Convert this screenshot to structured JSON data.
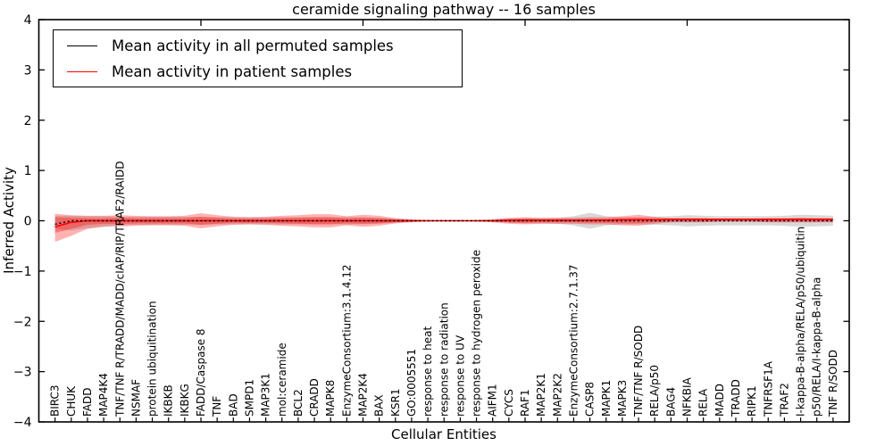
{
  "chart_data": {
    "type": "line",
    "title": "ceramide signaling pathway -- 16 samples",
    "xlabel": "Cellular Entities",
    "ylabel": "Inferred Activity",
    "ylim": [
      -4,
      4
    ],
    "xlim": [
      0,
      50
    ],
    "yticks": [
      4,
      3,
      2,
      1,
      0,
      -1,
      -2,
      -3,
      -4
    ],
    "ytick_labels": [
      "4",
      "3",
      "2",
      "1",
      "0",
      "−1",
      "−2",
      "−3",
      "−4"
    ],
    "top_ticks": [
      10,
      20,
      30,
      40
    ],
    "grid": false,
    "legend_position": "upper left",
    "legend": [
      "Mean activity in all permuted samples",
      "Mean activity in patient samples"
    ],
    "colors": {
      "permuted_line": "#000000",
      "patient_line": "#ff0000",
      "patient_band": "#ff0000",
      "permuted_band": "#999999",
      "frame": "#000000",
      "background": "#ffffff"
    },
    "categories": [
      "BIRC3",
      "CHUK",
      "FADD",
      "MAP4K4",
      "TNF/TNF R/TRADD/MADD/cIAP/RIP/TRAF2/RAIDD",
      "NSMAF",
      "protein ubiquitination",
      "IKBKB",
      "IKBKG",
      "FADD/Caspase 8",
      "TNF",
      "BAD",
      "SMPD1",
      "MAP3K1",
      "mol:ceramide",
      "BCL2",
      "CRADD",
      "MAPK8",
      "EnzymeConsortium:3.1.4.12",
      "MAP2K4",
      "BAX",
      "KSR1",
      "GO:0005551",
      "response to heat",
      "response to radiation",
      "response to UV",
      "response to hydrogen peroxide",
      "AIFM1",
      "CYCS",
      "RAF1",
      "MAP2K1",
      "MAP2K2",
      "EnzymeConsortium:2.7.1.37",
      "CASP8",
      "MAPK1",
      "MAPK3",
      "TNF/TNF R/SODD",
      "RELA/p50",
      "BAG4",
      "NFKBIA",
      "RELA",
      "MADD",
      "TRADD",
      "RIPK1",
      "TNFRSF1A",
      "TRAF2",
      "I-kappa-B-alpha/RELA/p50/ubiquitin",
      "p50/RELA/I-kappa-B-alpha",
      "TNF R/SODD"
    ],
    "series": [
      {
        "name": "Mean activity in all permuted samples",
        "values": [
          -0.07,
          0,
          0,
          0,
          0,
          0,
          0,
          0,
          0,
          0,
          0,
          0,
          0,
          0,
          0,
          0,
          0,
          0,
          0,
          0,
          0,
          0,
          0,
          0,
          0,
          0,
          0,
          0,
          0,
          0,
          0,
          0,
          0,
          0,
          0,
          0,
          0,
          0,
          0,
          0,
          0,
          0,
          0,
          0,
          0,
          0,
          0,
          0,
          0
        ]
      },
      {
        "name": "Mean activity in patient samples",
        "values": [
          -0.12,
          -0.03,
          0,
          0,
          0,
          0,
          0,
          0,
          0,
          0,
          0,
          0,
          0,
          0,
          0,
          0,
          0,
          0,
          0,
          0,
          0,
          0,
          0,
          0,
          0,
          0,
          0,
          0,
          0.01,
          0.01,
          0.01,
          0.01,
          0.01,
          0.01,
          0.01,
          0.02,
          0.02,
          0.02,
          0.03,
          0.03,
          0.03,
          0.03,
          0.03,
          0.03,
          0.03,
          0.03,
          0.03,
          0.03,
          0.03
        ]
      },
      {
        "name": "patient band upper",
        "values": [
          0.14,
          0.11,
          0.1,
          0.1,
          0.11,
          0.1,
          0.09,
          0.09,
          0.1,
          0.15,
          0.11,
          0.08,
          0.07,
          0.08,
          0.1,
          0.11,
          0.13,
          0.13,
          0.09,
          0.12,
          0.1,
          0.05,
          0.03,
          0.01,
          0.01,
          0.01,
          0.01,
          0.03,
          0.06,
          0.07,
          0.06,
          0.06,
          0.06,
          0.07,
          0.07,
          0.09,
          0.12,
          0.08,
          0.05,
          0.05,
          0.05,
          0.04,
          0.04,
          0.04,
          0.05,
          0.05,
          0.06,
          0.05,
          0.05
        ]
      },
      {
        "name": "patient band lower",
        "values": [
          -0.42,
          -0.3,
          -0.16,
          -0.12,
          -0.11,
          -0.1,
          -0.09,
          -0.09,
          -0.1,
          -0.15,
          -0.11,
          -0.08,
          -0.07,
          -0.08,
          -0.1,
          -0.11,
          -0.13,
          -0.13,
          -0.09,
          -0.12,
          -0.1,
          -0.05,
          -0.03,
          -0.01,
          -0.01,
          -0.01,
          -0.01,
          -0.03,
          -0.06,
          -0.07,
          -0.06,
          -0.06,
          -0.06,
          -0.07,
          -0.07,
          -0.09,
          -0.1,
          -0.06,
          -0.03,
          -0.03,
          -0.03,
          -0.02,
          -0.02,
          -0.02,
          -0.03,
          -0.03,
          -0.03,
          -0.03,
          -0.03
        ]
      },
      {
        "name": "patient band inner upper",
        "values": [
          0.07,
          0.06,
          0.05,
          0.05,
          0.06,
          0.05,
          0.05,
          0.05,
          0.05,
          0.08,
          0.06,
          0.04,
          0.04,
          0.04,
          0.05,
          0.06,
          0.07,
          0.07,
          0.05,
          0.06,
          0.05,
          0.03,
          0.02,
          0.01,
          0.01,
          0.01,
          0.01,
          0.02,
          0.03,
          0.04,
          0.03,
          0.03,
          0.03,
          0.04,
          0.04,
          0.05,
          0.06,
          0.04,
          0.03,
          0.03,
          0.03,
          0.02,
          0.02,
          0.02,
          0.03,
          0.03,
          0.03,
          0.03,
          0.03
        ]
      },
      {
        "name": "patient band inner lower",
        "values": [
          -0.24,
          -0.16,
          -0.08,
          -0.06,
          -0.06,
          -0.05,
          -0.05,
          -0.05,
          -0.05,
          -0.08,
          -0.06,
          -0.04,
          -0.04,
          -0.04,
          -0.05,
          -0.06,
          -0.07,
          -0.07,
          -0.05,
          -0.06,
          -0.05,
          -0.03,
          -0.02,
          -0.01,
          -0.01,
          -0.01,
          -0.01,
          -0.02,
          -0.03,
          -0.04,
          -0.03,
          -0.03,
          -0.03,
          -0.04,
          -0.04,
          -0.05,
          -0.05,
          -0.03,
          -0.02,
          -0.02,
          -0.02,
          -0.01,
          -0.01,
          -0.01,
          -0.02,
          -0.02,
          -0.02,
          -0.02,
          -0.02
        ]
      },
      {
        "name": "permuted band upper",
        "values": [
          0.1,
          0.1,
          0.09,
          0.09,
          0.08,
          0.08,
          0.08,
          0.08,
          0.08,
          0.08,
          0.07,
          0.07,
          0.07,
          0.07,
          0.07,
          0.07,
          0.07,
          0.07,
          0.07,
          0.07,
          0.06,
          0.04,
          0.02,
          0.01,
          0.01,
          0.01,
          0.01,
          0.02,
          0.04,
          0.05,
          0.05,
          0.06,
          0.09,
          0.16,
          0.09,
          0.07,
          0.07,
          0.08,
          0.09,
          0.11,
          0.1,
          0.09,
          0.09,
          0.09,
          0.09,
          0.1,
          0.12,
          0.11,
          0.1
        ]
      },
      {
        "name": "permuted band lower",
        "values": [
          -0.16,
          -0.19,
          -0.15,
          -0.11,
          -0.09,
          -0.08,
          -0.08,
          -0.08,
          -0.08,
          -0.08,
          -0.07,
          -0.07,
          -0.07,
          -0.07,
          -0.07,
          -0.07,
          -0.07,
          -0.07,
          -0.07,
          -0.07,
          -0.06,
          -0.04,
          -0.02,
          -0.01,
          -0.01,
          -0.01,
          -0.01,
          -0.02,
          -0.04,
          -0.05,
          -0.05,
          -0.06,
          -0.09,
          -0.16,
          -0.09,
          -0.07,
          -0.07,
          -0.08,
          -0.09,
          -0.11,
          -0.1,
          -0.09,
          -0.09,
          -0.09,
          -0.09,
          -0.1,
          -0.12,
          -0.11,
          -0.1
        ]
      }
    ]
  }
}
